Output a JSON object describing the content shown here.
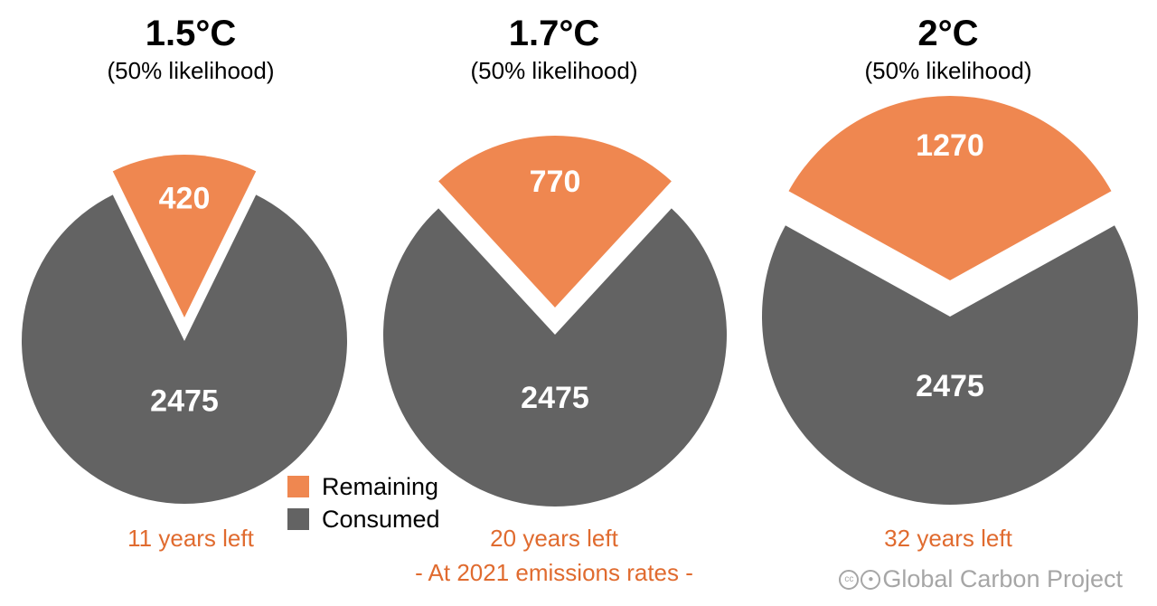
{
  "chart_data": [
    {
      "type": "pie",
      "title": "1.5°C",
      "subtitle": "(50% likelihood)",
      "slices": [
        {
          "label": "Remaining",
          "value": 420
        },
        {
          "label": "Consumed",
          "value": 2475
        }
      ],
      "footer": "11 years left"
    },
    {
      "type": "pie",
      "title": "1.7°C",
      "subtitle": "(50% likelihood)",
      "slices": [
        {
          "label": "Remaining",
          "value": 770
        },
        {
          "label": "Consumed",
          "value": 2475
        }
      ],
      "footer": "20 years left"
    },
    {
      "type": "pie",
      "title": "2°C",
      "subtitle": "(50% likelihood)",
      "slices": [
        {
          "label": "Remaining",
          "value": 1270
        },
        {
          "label": "Consumed",
          "value": 2475
        }
      ],
      "footer": "32 years left"
    }
  ],
  "legend": [
    {
      "label": "Remaining",
      "color": "#ef8750"
    },
    {
      "label": "Consumed",
      "color": "#636363"
    }
  ],
  "note": "- At 2021 emissions rates -",
  "credit": "Global Carbon Project",
  "credit_icons": [
    "cc-icon",
    "by-icon"
  ],
  "colors": {
    "remaining": "#ef8750",
    "consumed": "#636363",
    "accent_text": "#e06b2f"
  }
}
